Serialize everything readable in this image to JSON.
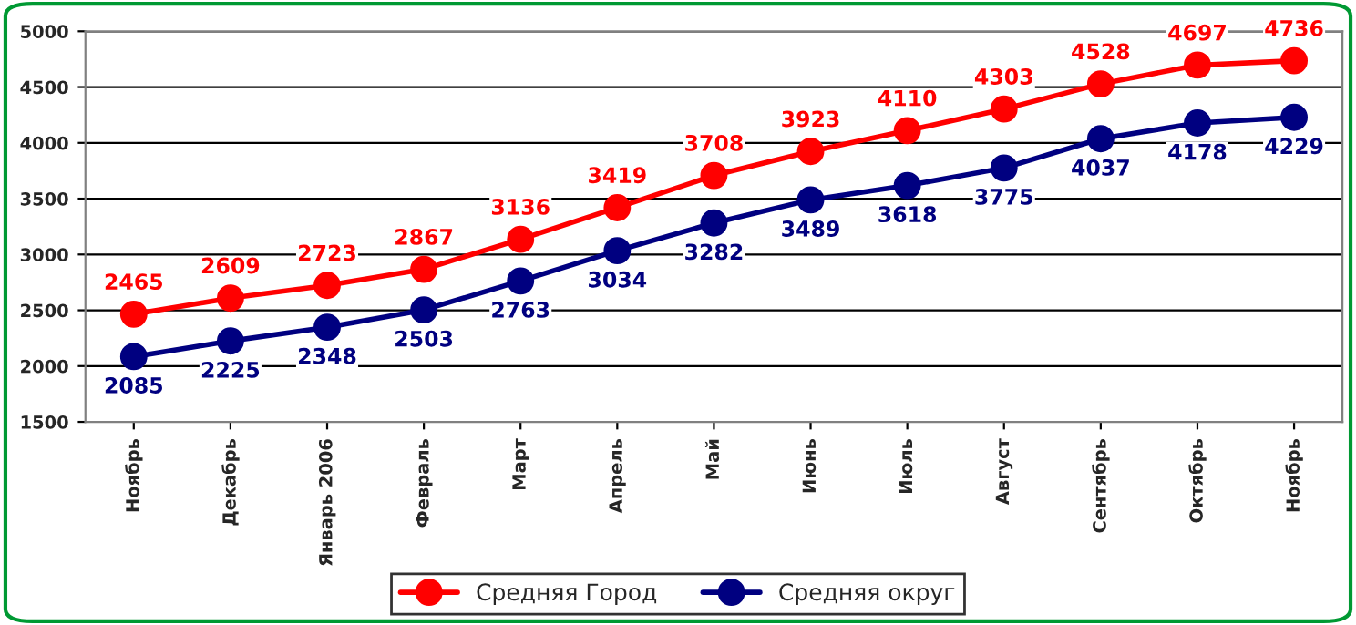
{
  "chart_data": {
    "type": "line",
    "categories": [
      "Ноябрь",
      "Декабрь",
      "Январь 2006",
      "Февраль",
      "Март",
      "Апрель",
      "Май",
      "Июнь",
      "Июль",
      "Август",
      "Сентябрь",
      "Октябрь",
      "Ноябрь"
    ],
    "series": [
      {
        "name": "Средняя Город",
        "color": "#ff0000",
        "values": [
          2465,
          2609,
          2723,
          2867,
          3136,
          3419,
          3708,
          3923,
          4110,
          4303,
          4528,
          4697,
          4736
        ]
      },
      {
        "name": "Средняя округ",
        "color": "#000080",
        "values": [
          2085,
          2225,
          2348,
          2503,
          2763,
          3034,
          3282,
          3489,
          3618,
          3775,
          4037,
          4178,
          4229
        ]
      }
    ],
    "ylim": [
      1500,
      5000
    ],
    "yticks": [
      1500,
      2000,
      2500,
      3000,
      3500,
      4000,
      4500,
      5000
    ],
    "grid": "y",
    "legend": "bottom",
    "marker": "circle",
    "line_style": "solid",
    "data_labels": true
  }
}
